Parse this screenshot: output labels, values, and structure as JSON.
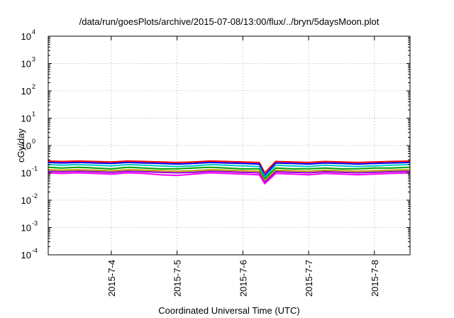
{
  "chart_data": {
    "type": "line",
    "title": "/data/run/goesPlots/archive/2015-07-08/13:00/flux/../bryn/5daysMoon.plot",
    "xlabel": "Coordinated Universal Time (UTC)",
    "ylabel": "cGy/day",
    "yscale": "log",
    "ylim": [
      0.0001,
      10000
    ],
    "xlim": [
      "2015-07-03T01:00",
      "2015-07-08T13:00"
    ],
    "grid": true,
    "y_ticks": [
      {
        "base": "10",
        "exp": "-4",
        "value": 0.0001
      },
      {
        "base": "10",
        "exp": "-3",
        "value": 0.001
      },
      {
        "base": "10",
        "exp": "-2",
        "value": 0.01
      },
      {
        "base": "10",
        "exp": "-1",
        "value": 0.1
      },
      {
        "base": "10",
        "exp": "0",
        "value": 1
      },
      {
        "base": "10",
        "exp": "1",
        "value": 10
      },
      {
        "base": "10",
        "exp": "2",
        "value": 100
      },
      {
        "base": "10",
        "exp": "3",
        "value": 1000
      },
      {
        "base": "10",
        "exp": "4",
        "value": 10000
      }
    ],
    "x_ticks": [
      {
        "label": "2015-7-4",
        "value": "2015-07-04T00:00"
      },
      {
        "label": "2015-7-5",
        "value": "2015-07-05T00:00"
      },
      {
        "label": "2015-7-6",
        "value": "2015-07-06T00:00"
      },
      {
        "label": "2015-7-7",
        "value": "2015-07-07T00:00"
      },
      {
        "label": "2015-7-8",
        "value": "2015-07-08T00:00"
      }
    ],
    "x": [
      "2015-07-03T01:00",
      "2015-07-03T06:00",
      "2015-07-03T12:00",
      "2015-07-03T18:00",
      "2015-07-04T00:00",
      "2015-07-04T06:00",
      "2015-07-04T12:00",
      "2015-07-04T18:00",
      "2015-07-05T00:00",
      "2015-07-05T06:00",
      "2015-07-05T12:00",
      "2015-07-05T18:00",
      "2015-07-06T00:00",
      "2015-07-06T06:00",
      "2015-07-06T08:00",
      "2015-07-06T12:00",
      "2015-07-06T18:00",
      "2015-07-07T00:00",
      "2015-07-07T06:00",
      "2015-07-07T12:00",
      "2015-07-07T18:00",
      "2015-07-08T00:00",
      "2015-07-08T06:00",
      "2015-07-08T13:00"
    ],
    "series": [
      {
        "color": "#ff0000",
        "values": [
          0.27,
          0.26,
          0.27,
          0.26,
          0.25,
          0.27,
          0.26,
          0.25,
          0.24,
          0.25,
          0.27,
          0.26,
          0.25,
          0.24,
          0.1,
          0.26,
          0.25,
          0.24,
          0.26,
          0.25,
          0.24,
          0.25,
          0.26,
          0.27
        ]
      },
      {
        "color": "#0000ff",
        "values": [
          0.24,
          0.23,
          0.24,
          0.23,
          0.22,
          0.24,
          0.23,
          0.22,
          0.21,
          0.22,
          0.24,
          0.23,
          0.22,
          0.21,
          0.08,
          0.23,
          0.22,
          0.21,
          0.23,
          0.22,
          0.21,
          0.22,
          0.23,
          0.24
        ]
      },
      {
        "color": "#00c8c8",
        "values": [
          0.2,
          0.19,
          0.2,
          0.19,
          0.18,
          0.2,
          0.19,
          0.18,
          0.17,
          0.18,
          0.2,
          0.19,
          0.18,
          0.17,
          0.07,
          0.19,
          0.18,
          0.17,
          0.19,
          0.18,
          0.17,
          0.18,
          0.19,
          0.2
        ]
      },
      {
        "color": "#00a000",
        "values": [
          0.16,
          0.15,
          0.16,
          0.15,
          0.14,
          0.16,
          0.15,
          0.14,
          0.14,
          0.15,
          0.16,
          0.15,
          0.14,
          0.14,
          0.06,
          0.15,
          0.14,
          0.14,
          0.15,
          0.14,
          0.14,
          0.15,
          0.15,
          0.16
        ]
      },
      {
        "color": "#c0a000",
        "values": [
          0.13,
          0.125,
          0.13,
          0.125,
          0.12,
          0.13,
          0.125,
          0.12,
          0.115,
          0.12,
          0.13,
          0.125,
          0.12,
          0.115,
          0.05,
          0.125,
          0.12,
          0.115,
          0.125,
          0.12,
          0.115,
          0.12,
          0.125,
          0.13
        ]
      },
      {
        "color": "#9400d3",
        "values": [
          0.115,
          0.11,
          0.115,
          0.11,
          0.105,
          0.115,
          0.11,
          0.105,
          0.1,
          0.105,
          0.115,
          0.11,
          0.105,
          0.1,
          0.045,
          0.11,
          0.105,
          0.1,
          0.11,
          0.105,
          0.1,
          0.105,
          0.11,
          0.115
        ]
      },
      {
        "color": "#ff00ff",
        "values": [
          0.1,
          0.095,
          0.1,
          0.095,
          0.09,
          0.1,
          0.095,
          0.085,
          0.08,
          0.09,
          0.1,
          0.095,
          0.09,
          0.085,
          0.04,
          0.095,
          0.09,
          0.085,
          0.095,
          0.09,
          0.085,
          0.09,
          0.095,
          0.1
        ]
      }
    ]
  }
}
